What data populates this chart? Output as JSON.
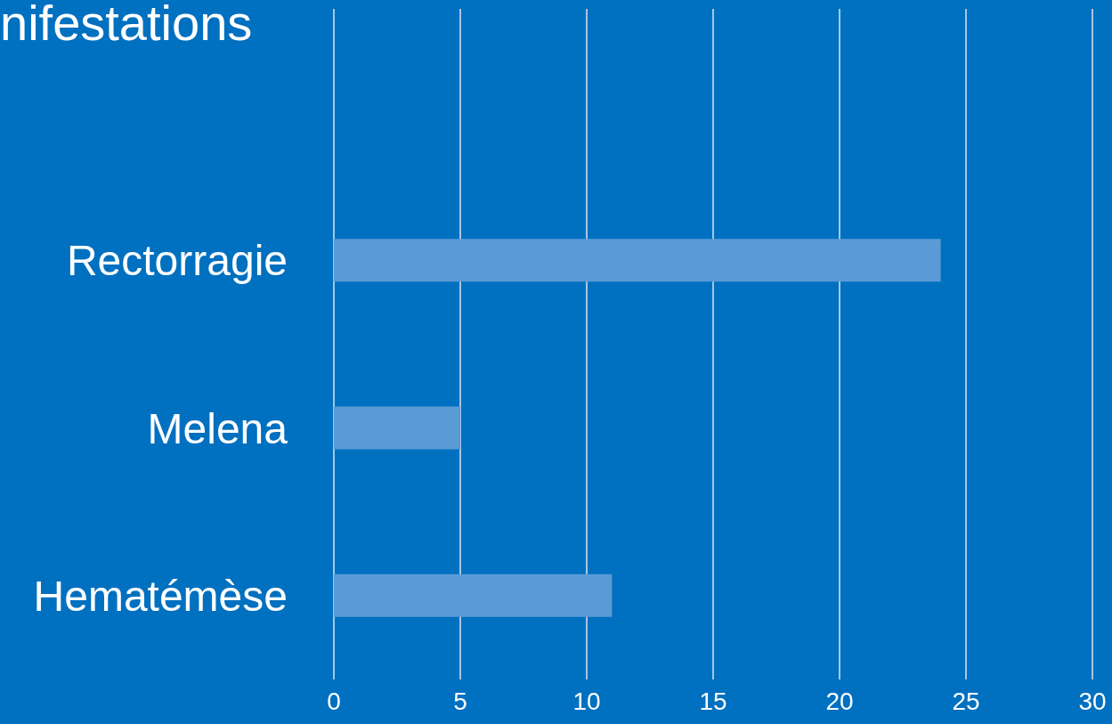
{
  "chart_data": {
    "type": "bar",
    "orientation": "horizontal",
    "title": "nifestations",
    "categories": [
      null,
      "Rectorragie",
      "Melena",
      "Hematémèse"
    ],
    "values": [
      null,
      24,
      5,
      11
    ],
    "color": "#5b9bd5",
    "xlim": [
      0,
      30
    ],
    "xticks": [
      0,
      5,
      10,
      15,
      20,
      25,
      30
    ],
    "grid": "x"
  }
}
